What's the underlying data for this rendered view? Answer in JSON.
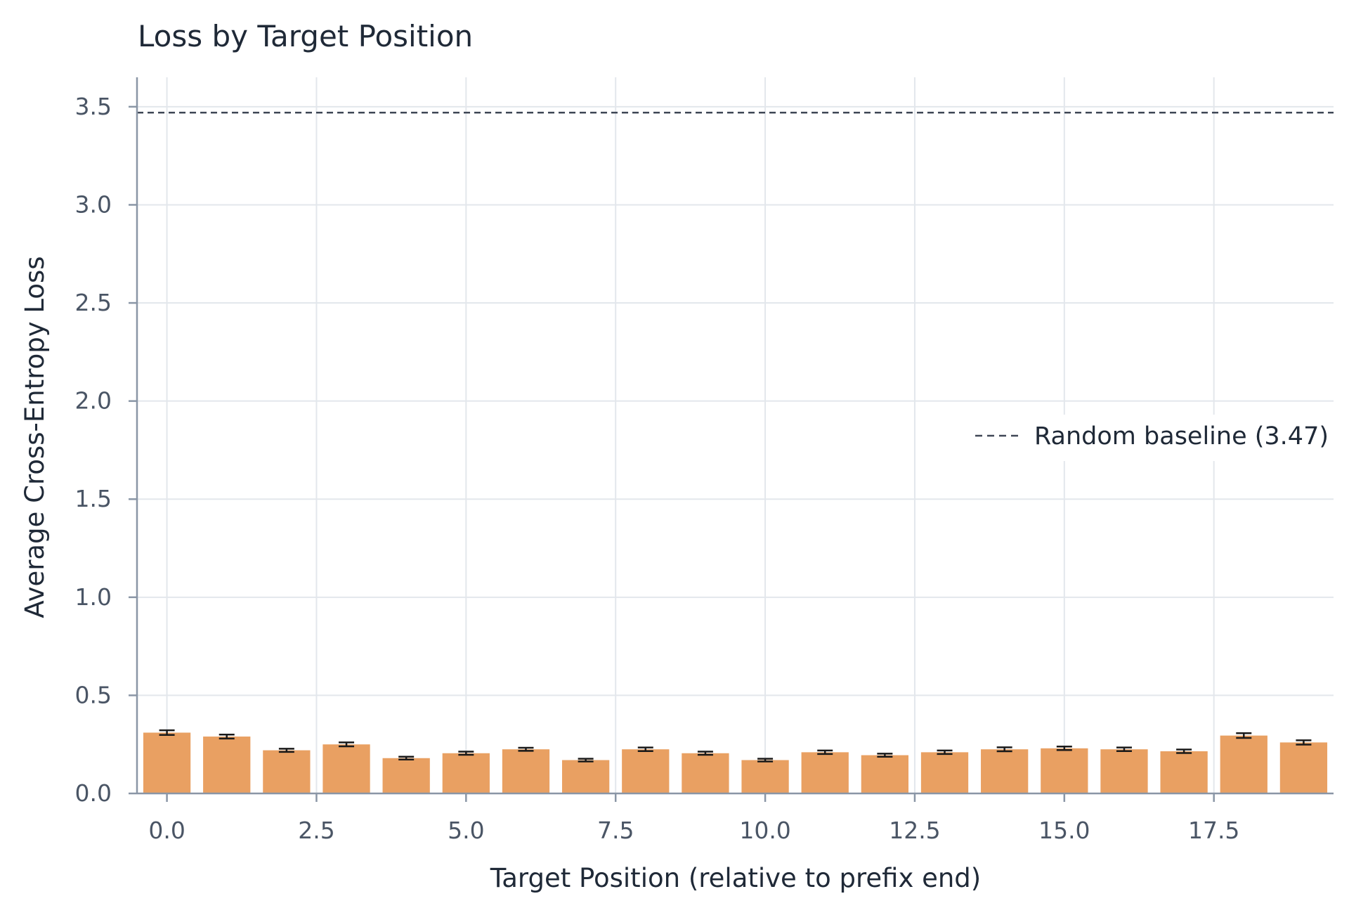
{
  "chart_data": {
    "type": "bar",
    "title": "Loss by Target Position",
    "xlabel": "Target Position (relative to prefix end)",
    "ylabel": "Average Cross-Entropy Loss",
    "x": [
      0,
      1,
      2,
      3,
      4,
      5,
      6,
      7,
      8,
      9,
      10,
      11,
      12,
      13,
      14,
      15,
      16,
      17,
      18,
      19
    ],
    "values": [
      0.31,
      0.29,
      0.22,
      0.25,
      0.18,
      0.205,
      0.225,
      0.17,
      0.225,
      0.205,
      0.17,
      0.21,
      0.195,
      0.21,
      0.225,
      0.23,
      0.225,
      0.215,
      0.295,
      0.26
    ],
    "errors": [
      0.012,
      0.01,
      0.008,
      0.01,
      0.007,
      0.008,
      0.008,
      0.007,
      0.009,
      0.008,
      0.007,
      0.009,
      0.008,
      0.009,
      0.01,
      0.009,
      0.009,
      0.009,
      0.012,
      0.011
    ],
    "xlim": [
      -0.5,
      19.5
    ],
    "ylim": [
      0,
      3.65
    ],
    "xticks": [
      0.0,
      2.5,
      5.0,
      7.5,
      10.0,
      12.5,
      15.0,
      17.5
    ],
    "xtick_labels": [
      "0.0",
      "2.5",
      "5.0",
      "7.5",
      "10.0",
      "12.5",
      "15.0",
      "17.5"
    ],
    "yticks": [
      0.0,
      0.5,
      1.0,
      1.5,
      2.0,
      2.5,
      3.0,
      3.5
    ],
    "ytick_labels": [
      "0.0",
      "0.5",
      "1.0",
      "1.5",
      "2.0",
      "2.5",
      "3.0",
      "3.5"
    ],
    "baseline": {
      "value": 3.47,
      "label": "Random baseline (3.47)",
      "style": "dashed",
      "color": "#3f4756"
    },
    "bar_color": "#e9a062",
    "grid": true,
    "legend_position": "center-right"
  }
}
